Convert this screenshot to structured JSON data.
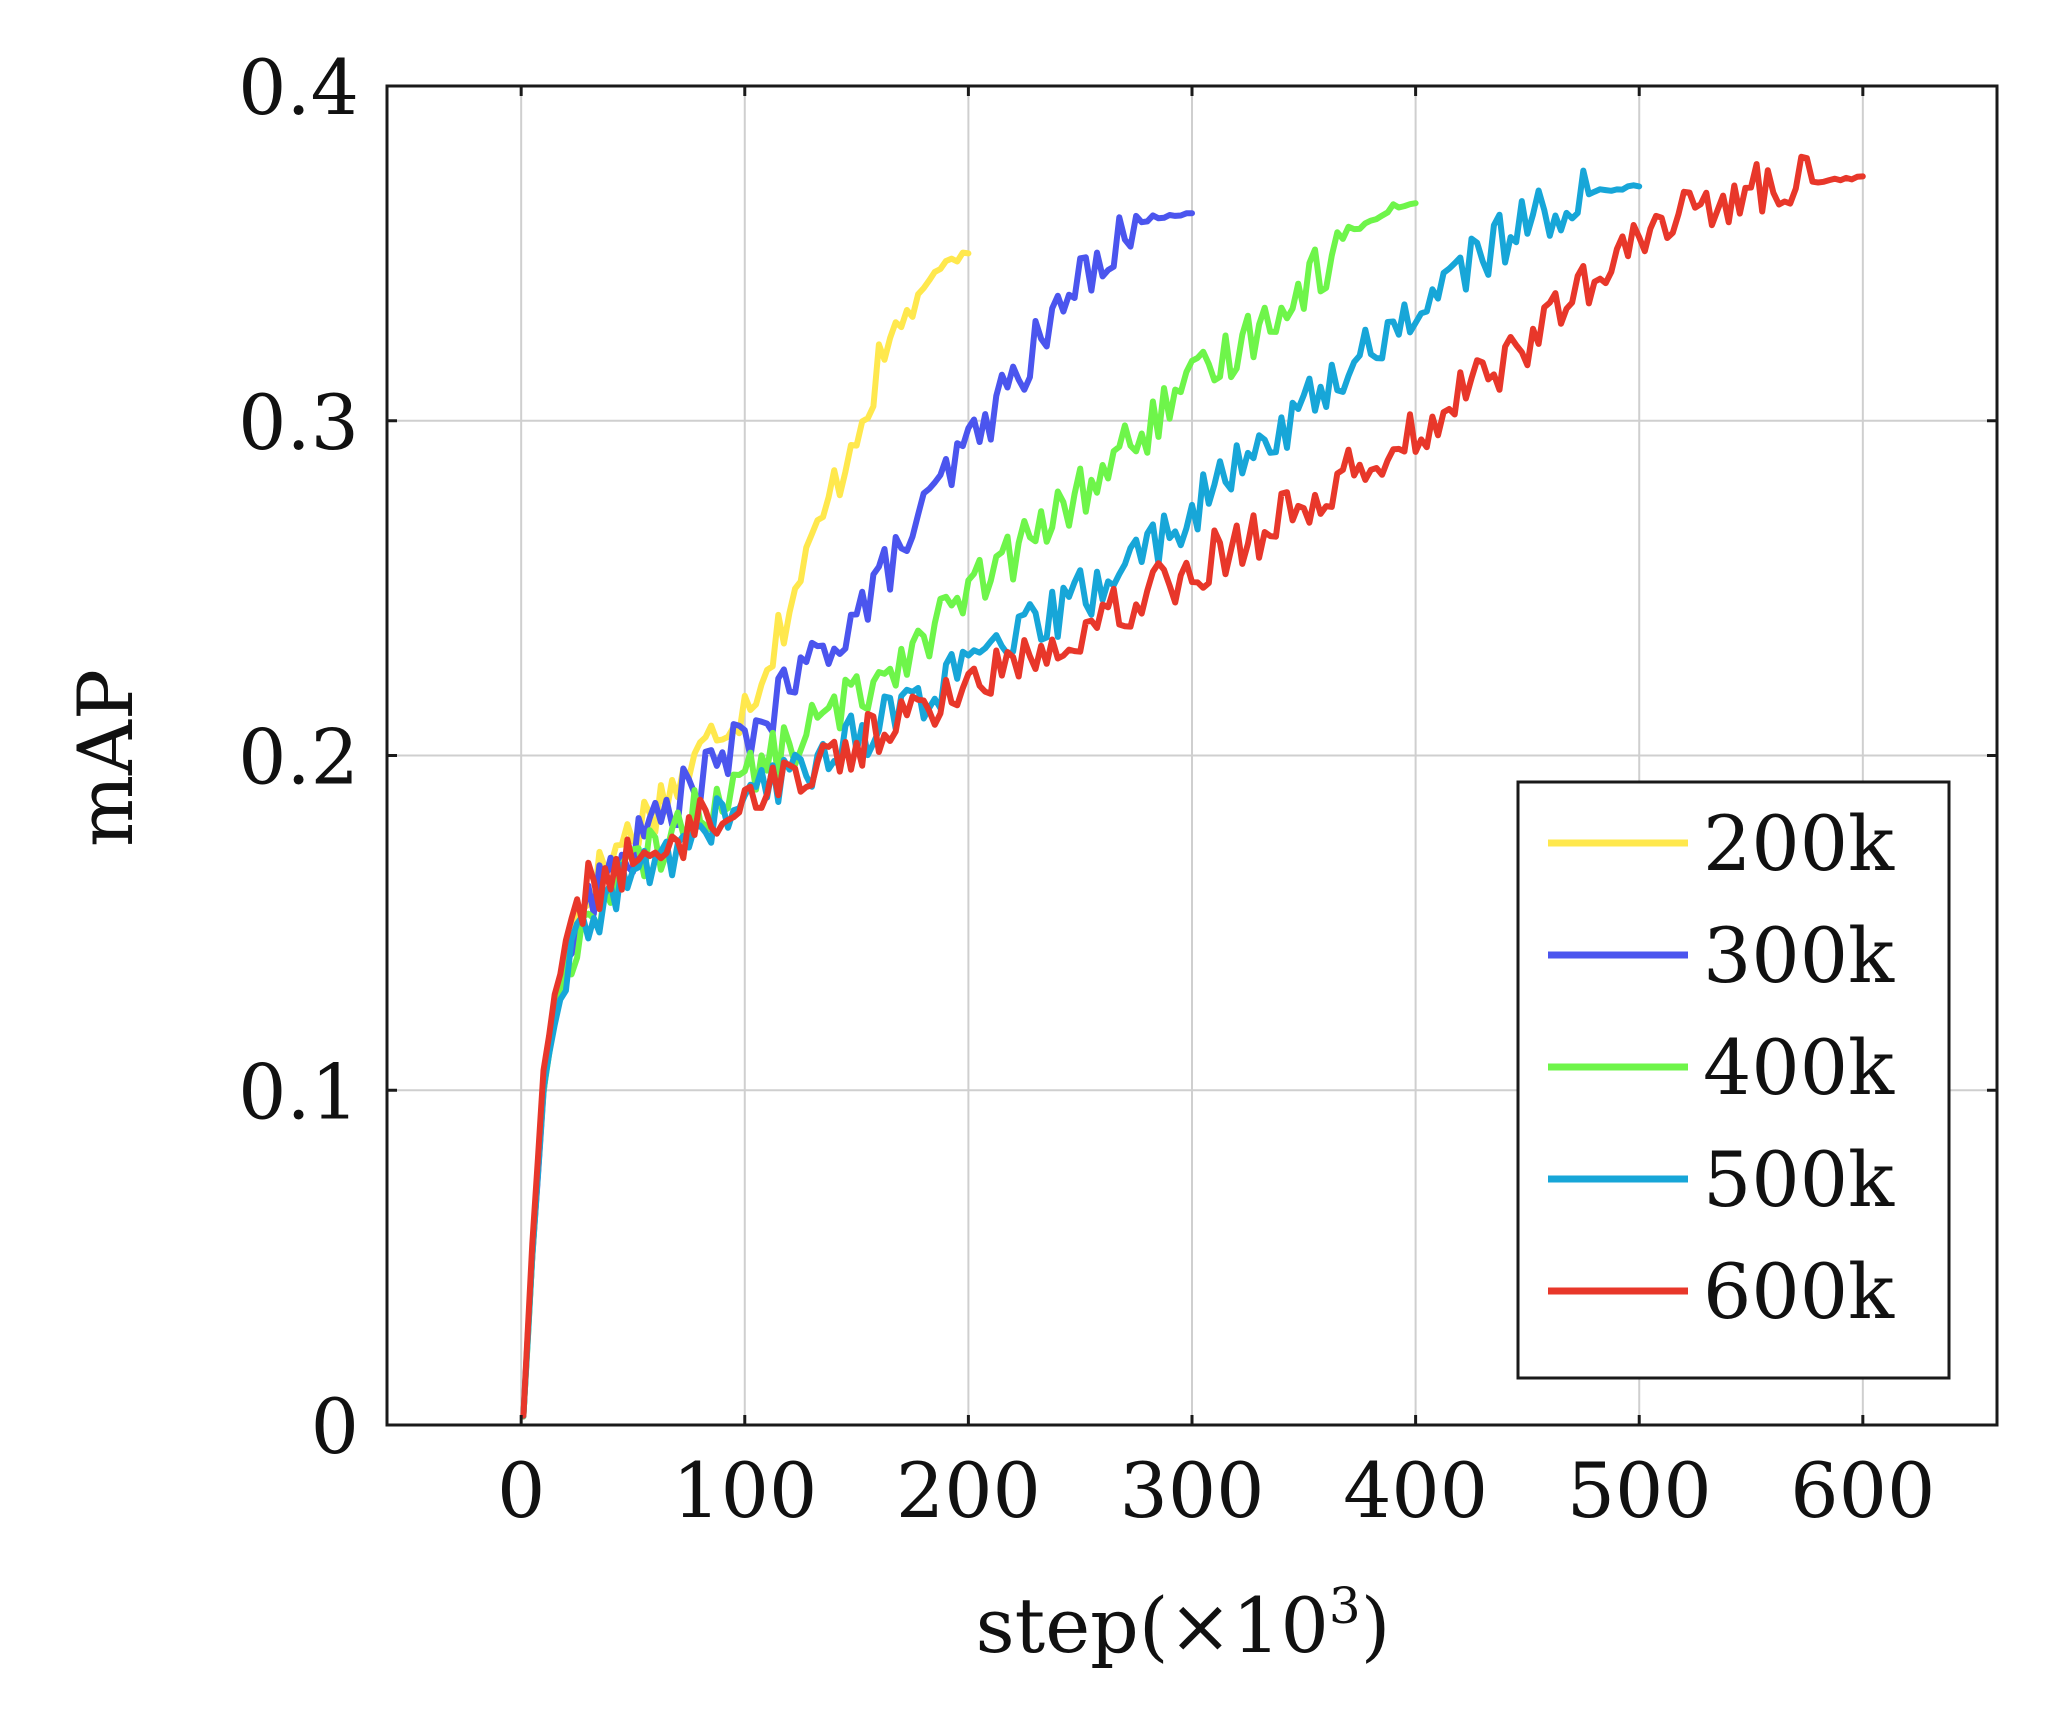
{
  "chart_data": {
    "type": "line",
    "xlabel": "step(×10",
    "xlabel_sup": "3",
    "xlabel_close": ")",
    "ylabel": "mAP",
    "xlim": [
      -60,
      660
    ],
    "ylim": [
      0,
      0.4
    ],
    "x_ticks": [
      0,
      100,
      200,
      300,
      400,
      500,
      600
    ],
    "x_tick_labels": [
      "0",
      "100",
      "200",
      "300",
      "400",
      "500",
      "600"
    ],
    "y_ticks": [
      0,
      0.1,
      0.2,
      0.3,
      0.4
    ],
    "y_tick_labels": [
      "0",
      "0.1",
      "0.2",
      "0.3",
      "0.4"
    ],
    "grid": true,
    "legend_position": "lower-right",
    "series": [
      {
        "name": "200k",
        "color": "#ffe84d",
        "points": [
          [
            1,
            0.003
          ],
          [
            5,
            0.05
          ],
          [
            10,
            0.1
          ],
          [
            15,
            0.125
          ],
          [
            20,
            0.14
          ],
          [
            25,
            0.152
          ],
          [
            30,
            0.16
          ],
          [
            35,
            0.165
          ],
          [
            40,
            0.17
          ],
          [
            50,
            0.178
          ],
          [
            60,
            0.185
          ],
          [
            70,
            0.192
          ],
          [
            80,
            0.2
          ],
          [
            90,
            0.21
          ],
          [
            100,
            0.215
          ],
          [
            110,
            0.228
          ],
          [
            120,
            0.245
          ],
          [
            130,
            0.262
          ],
          [
            140,
            0.28
          ],
          [
            150,
            0.298
          ],
          [
            160,
            0.315
          ],
          [
            170,
            0.33
          ],
          [
            180,
            0.34
          ],
          [
            190,
            0.347
          ],
          [
            200,
            0.35
          ]
        ]
      },
      {
        "name": "300k",
        "color": "#4b55ee",
        "points": [
          [
            1,
            0.003
          ],
          [
            5,
            0.05
          ],
          [
            10,
            0.1
          ],
          [
            15,
            0.125
          ],
          [
            20,
            0.138
          ],
          [
            25,
            0.148
          ],
          [
            30,
            0.155
          ],
          [
            40,
            0.165
          ],
          [
            50,
            0.172
          ],
          [
            60,
            0.18
          ],
          [
            70,
            0.187
          ],
          [
            80,
            0.193
          ],
          [
            90,
            0.198
          ],
          [
            100,
            0.205
          ],
          [
            110,
            0.212
          ],
          [
            120,
            0.22
          ],
          [
            130,
            0.228
          ],
          [
            140,
            0.235
          ],
          [
            150,
            0.242
          ],
          [
            160,
            0.252
          ],
          [
            170,
            0.262
          ],
          [
            180,
            0.272
          ],
          [
            190,
            0.283
          ],
          [
            200,
            0.293
          ],
          [
            210,
            0.302
          ],
          [
            220,
            0.312
          ],
          [
            230,
            0.322
          ],
          [
            240,
            0.332
          ],
          [
            250,
            0.342
          ],
          [
            260,
            0.35
          ],
          [
            270,
            0.356
          ],
          [
            280,
            0.36
          ],
          [
            290,
            0.362
          ],
          [
            300,
            0.362
          ]
        ]
      },
      {
        "name": "400k",
        "color": "#6ef54a",
        "points": [
          [
            1,
            0.003
          ],
          [
            5,
            0.05
          ],
          [
            10,
            0.1
          ],
          [
            15,
            0.122
          ],
          [
            20,
            0.135
          ],
          [
            25,
            0.145
          ],
          [
            30,
            0.152
          ],
          [
            40,
            0.16
          ],
          [
            50,
            0.166
          ],
          [
            60,
            0.172
          ],
          [
            70,
            0.178
          ],
          [
            80,
            0.183
          ],
          [
            90,
            0.188
          ],
          [
            100,
            0.193
          ],
          [
            110,
            0.198
          ],
          [
            120,
            0.203
          ],
          [
            130,
            0.208
          ],
          [
            140,
            0.213
          ],
          [
            150,
            0.218
          ],
          [
            160,
            0.224
          ],
          [
            170,
            0.23
          ],
          [
            180,
            0.236
          ],
          [
            190,
            0.242
          ],
          [
            200,
            0.248
          ],
          [
            220,
            0.26
          ],
          [
            240,
            0.272
          ],
          [
            260,
            0.285
          ],
          [
            280,
            0.298
          ],
          [
            300,
            0.31
          ],
          [
            320,
            0.322
          ],
          [
            340,
            0.335
          ],
          [
            360,
            0.347
          ],
          [
            370,
            0.355
          ],
          [
            380,
            0.36
          ],
          [
            390,
            0.364
          ],
          [
            400,
            0.365
          ]
        ]
      },
      {
        "name": "500k",
        "color": "#17a6d8",
        "points": [
          [
            1,
            0.003
          ],
          [
            5,
            0.05
          ],
          [
            10,
            0.1
          ],
          [
            15,
            0.12
          ],
          [
            20,
            0.133
          ],
          [
            25,
            0.142
          ],
          [
            30,
            0.15
          ],
          [
            40,
            0.158
          ],
          [
            50,
            0.163
          ],
          [
            60,
            0.168
          ],
          [
            70,
            0.172
          ],
          [
            80,
            0.177
          ],
          [
            90,
            0.182
          ],
          [
            100,
            0.186
          ],
          [
            110,
            0.19
          ],
          [
            120,
            0.194
          ],
          [
            130,
            0.198
          ],
          [
            140,
            0.202
          ],
          [
            150,
            0.206
          ],
          [
            160,
            0.21
          ],
          [
            180,
            0.218
          ],
          [
            200,
            0.226
          ],
          [
            220,
            0.234
          ],
          [
            240,
            0.243
          ],
          [
            260,
            0.252
          ],
          [
            280,
            0.262
          ],
          [
            300,
            0.273
          ],
          [
            320,
            0.285
          ],
          [
            340,
            0.298
          ],
          [
            360,
            0.31
          ],
          [
            380,
            0.322
          ],
          [
            400,
            0.333
          ],
          [
            420,
            0.345
          ],
          [
            440,
            0.355
          ],
          [
            460,
            0.363
          ],
          [
            480,
            0.368
          ],
          [
            490,
            0.37
          ],
          [
            500,
            0.37
          ]
        ]
      },
      {
        "name": "600k",
        "color": "#e8372a",
        "points": [
          [
            1,
            0.003
          ],
          [
            5,
            0.055
          ],
          [
            10,
            0.105
          ],
          [
            15,
            0.128
          ],
          [
            20,
            0.142
          ],
          [
            25,
            0.152
          ],
          [
            30,
            0.162
          ],
          [
            35,
            0.16
          ],
          [
            40,
            0.165
          ],
          [
            50,
            0.168
          ],
          [
            60,
            0.172
          ],
          [
            70,
            0.176
          ],
          [
            80,
            0.18
          ],
          [
            90,
            0.184
          ],
          [
            100,
            0.188
          ],
          [
            110,
            0.191
          ],
          [
            120,
            0.194
          ],
          [
            130,
            0.197
          ],
          [
            140,
            0.2
          ],
          [
            150,
            0.203
          ],
          [
            160,
            0.207
          ],
          [
            180,
            0.214
          ],
          [
            200,
            0.221
          ],
          [
            220,
            0.228
          ],
          [
            240,
            0.235
          ],
          [
            260,
            0.242
          ],
          [
            280,
            0.249
          ],
          [
            300,
            0.256
          ],
          [
            320,
            0.263
          ],
          [
            340,
            0.271
          ],
          [
            360,
            0.279
          ],
          [
            380,
            0.288
          ],
          [
            400,
            0.297
          ],
          [
            420,
            0.307
          ],
          [
            440,
            0.318
          ],
          [
            460,
            0.33
          ],
          [
            480,
            0.342
          ],
          [
            500,
            0.353
          ],
          [
            520,
            0.362
          ],
          [
            540,
            0.367
          ],
          [
            560,
            0.37
          ],
          [
            580,
            0.372
          ],
          [
            600,
            0.373
          ]
        ]
      }
    ]
  }
}
